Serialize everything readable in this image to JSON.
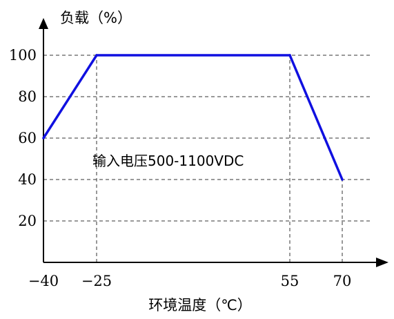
{
  "chart_data": {
    "type": "line",
    "ylabel": "负载（%）",
    "xlabel": "环境温度（℃）",
    "annotation": "输入电压500-1100VDC",
    "x_ticks": [
      -40,
      -25,
      55,
      70
    ],
    "x_tick_labels": [
      "-40",
      "-25",
      "55",
      "70"
    ],
    "y_ticks": [
      20,
      40,
      60,
      80,
      100
    ],
    "y_tick_labels": [
      "20",
      "40",
      "60",
      "80",
      "100"
    ],
    "xlim": [
      -40,
      70
    ],
    "ylim": [
      0,
      100
    ],
    "grid": true,
    "series": [
      {
        "x": [
          -40,
          -25,
          55,
          70
        ],
        "y": [
          60,
          100,
          100,
          40
        ],
        "color": "#1010e0"
      }
    ]
  }
}
